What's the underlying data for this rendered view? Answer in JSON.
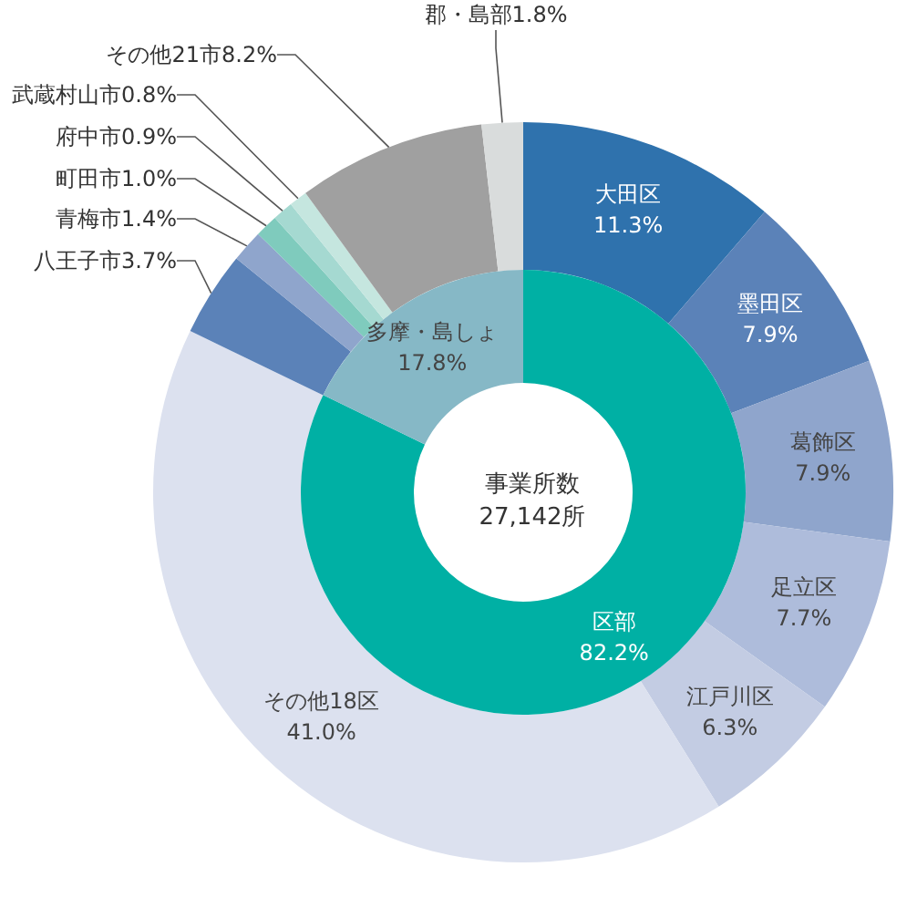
{
  "chart_data": [
    {
      "type": "donut",
      "categories": [
        "大田区",
        "墨田区",
        "葛飾区",
        "足立区",
        "江戸川区",
        "その他18区",
        "八王子市",
        "青梅市",
        "町田市",
        "府中市",
        "武蔵村山市",
        "その他21市",
        "郡・島部"
      ],
      "values": [
        11.3,
        7.9,
        7.9,
        7.7,
        6.3,
        41.0,
        3.7,
        1.4,
        1.0,
        0.9,
        0.8,
        8.2,
        1.8
      ],
      "value_labels": [
        "11.3%",
        "7.9%",
        "7.9%",
        "7.7%",
        "6.3%",
        "41.0%",
        "3.7%",
        "1.4%",
        "1.0%",
        "0.9%",
        "0.8%",
        "8.2%",
        "1.8%"
      ],
      "colors": [
        "#2f72ad",
        "#5b82b8",
        "#8fa5cc",
        "#aebcdb",
        "#c3cce3",
        "#dce1ef",
        "#5b82b8",
        "#8fa5cc",
        "#7fcbbd",
        "#a5d9d1",
        "#c5e6df",
        "#a0a0a0",
        "#d9dcdc"
      ]
    },
    {
      "type": "donut",
      "title": "事業所数\n27,142所",
      "categories": [
        "区部",
        "多摩・島しょ"
      ],
      "values": [
        82.2,
        17.8
      ],
      "value_labels": [
        "82.2%",
        "17.8%"
      ],
      "colors": [
        "#00b0a4",
        "#86b8c6"
      ]
    }
  ]
}
